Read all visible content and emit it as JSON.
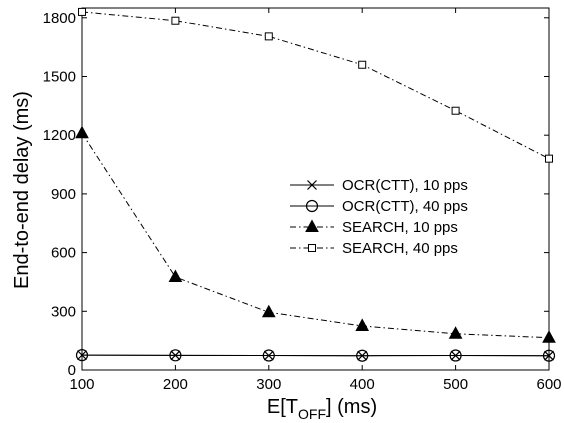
{
  "chart_data": {
    "type": "line",
    "title": "",
    "xlabel": "E[T_OFF] (ms)",
    "xlabel_main": "E[T",
    "xlabel_sub": "OFF",
    "xlabel_tail": "] (ms)",
    "ylabel": "End-to-end delay (ms)",
    "x": [
      100,
      200,
      300,
      400,
      500,
      600
    ],
    "xlim": [
      100,
      600
    ],
    "ylim": [
      0,
      1850
    ],
    "xticks": [
      "100",
      "200",
      "300",
      "400",
      "500",
      "600"
    ],
    "yticks": [
      "0",
      "300",
      "600",
      "900",
      "1200",
      "1500",
      "1800"
    ],
    "grid": false,
    "legend_position": "right",
    "series": [
      {
        "name": "OCR(CTT), 10 pps",
        "values": [
          76,
          75,
          74,
          73,
          74,
          73
        ],
        "marker": "x",
        "dash": "solid"
      },
      {
        "name": "OCR(CTT), 40 pps",
        "values": [
          76,
          75,
          74,
          73,
          74,
          73
        ],
        "marker": "circle",
        "dash": "solid"
      },
      {
        "name": "SEARCH, 10 pps",
        "values": [
          1210,
          475,
          295,
          225,
          185,
          165
        ],
        "marker": "triangle",
        "dash": "dashdot"
      },
      {
        "name": "SEARCH, 40 pps",
        "values": [
          1830,
          1785,
          1705,
          1560,
          1325,
          1080
        ],
        "marker": "square",
        "dash": "dashdot"
      }
    ]
  }
}
